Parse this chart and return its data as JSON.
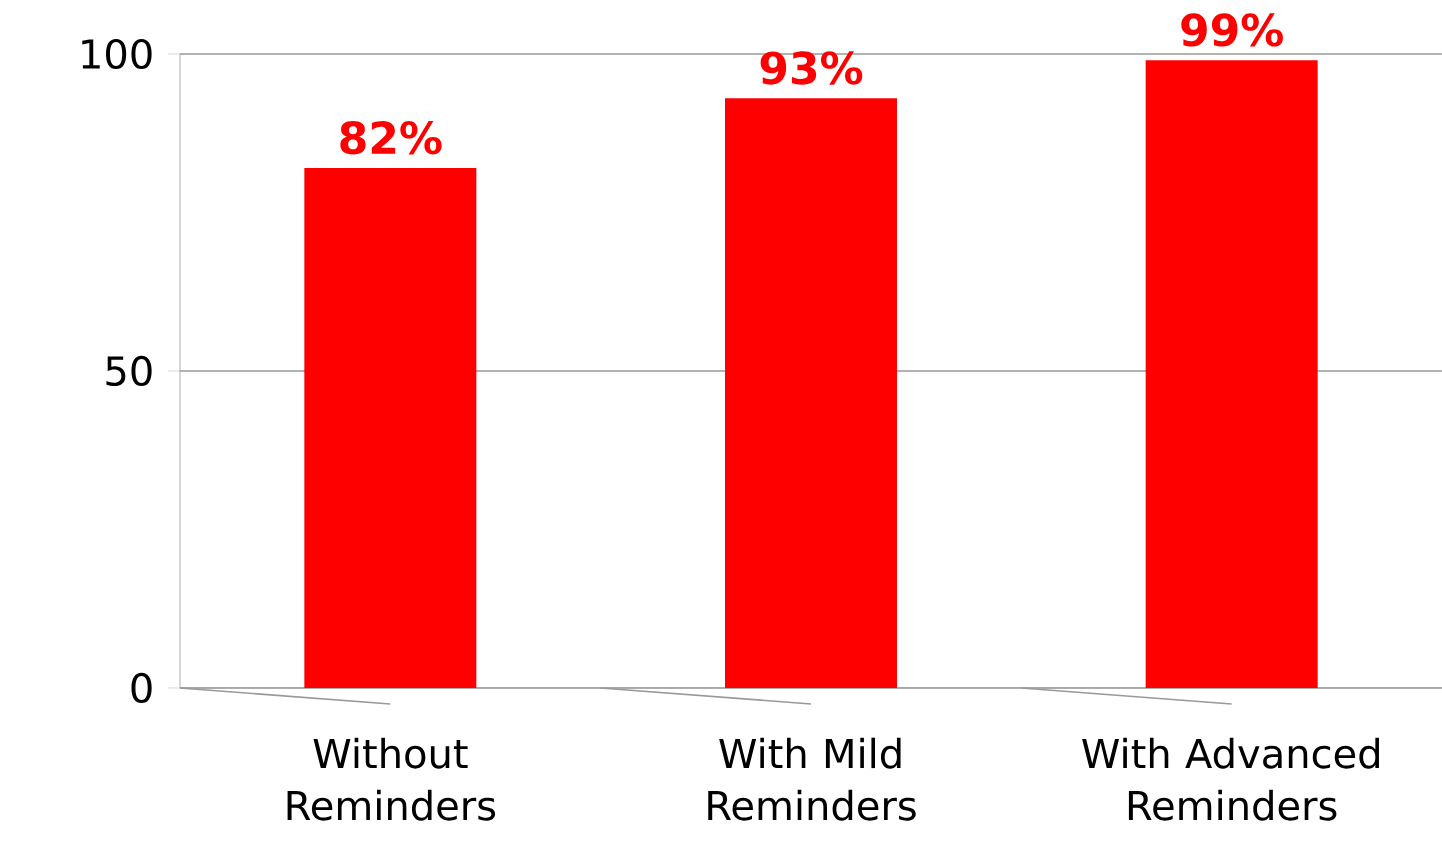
{
  "chart_data": {
    "type": "bar",
    "categories": [
      "Without Reminders",
      "With Mild Reminders",
      "With Advanced Reminders"
    ],
    "values": [
      82,
      93,
      99
    ],
    "value_labels": [
      "82%",
      "93%",
      "99%"
    ],
    "color": "#ff0000",
    "ylim": [
      0,
      100
    ],
    "yticks": [
      0,
      50,
      100
    ],
    "grid": "y"
  }
}
